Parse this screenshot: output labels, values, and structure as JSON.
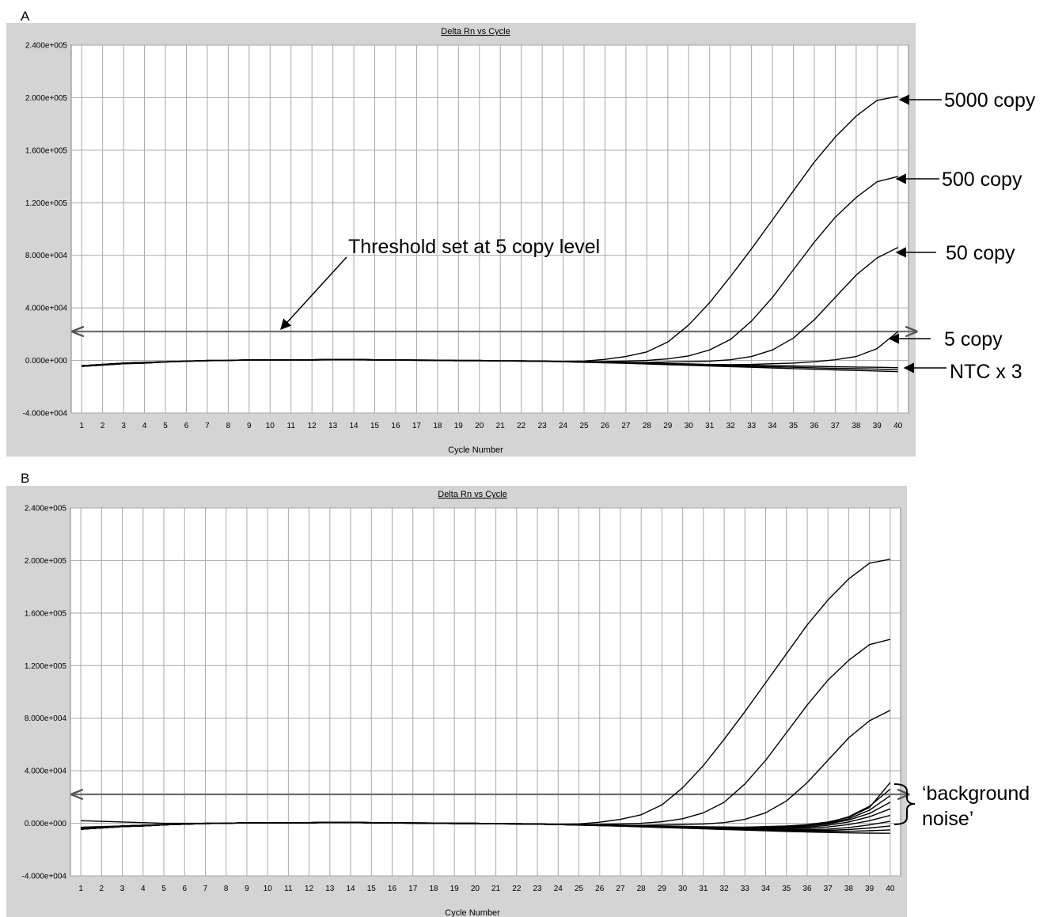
{
  "figure": {
    "panels": [
      {
        "letter": "A"
      },
      {
        "letter": "B"
      }
    ]
  },
  "chart_data": [
    {
      "panel": "A",
      "type": "line",
      "title": "Delta Rn vs Cycle",
      "xlabel": "Cycle Number",
      "ylabel": "",
      "x": [
        1,
        2,
        3,
        4,
        5,
        6,
        7,
        8,
        9,
        10,
        11,
        12,
        13,
        14,
        15,
        16,
        17,
        18,
        19,
        20,
        21,
        22,
        23,
        24,
        25,
        26,
        27,
        28,
        29,
        30,
        31,
        32,
        33,
        34,
        35,
        36,
        37,
        38,
        39,
        40
      ],
      "xlim": [
        0.5,
        40.5
      ],
      "ylim": [
        -40000,
        240000
      ],
      "yticks": [
        -40000,
        0,
        40000,
        80000,
        120000,
        160000,
        200000,
        240000
      ],
      "ytick_labels": [
        "-4.000e+004",
        "0.000e+000",
        "4.000e+004",
        "8.000e+004",
        "1.200e+005",
        "1.600e+005",
        "2.000e+005",
        "2.400e+005"
      ],
      "grid": true,
      "threshold": 22000,
      "series": [
        {
          "name": "5000 copy",
          "values": [
            -4000,
            -3000,
            -2000,
            -1500,
            -1000,
            -500,
            0,
            0,
            500,
            500,
            500,
            500,
            800,
            800,
            500,
            500,
            300,
            200,
            0,
            0,
            -300,
            -300,
            -500,
            -800,
            -500,
            800,
            3000,
            6500,
            14000,
            27000,
            44000,
            64000,
            85000,
            107000,
            129000,
            151000,
            170000,
            186000,
            198000,
            201000
          ]
        },
        {
          "name": "500 copy",
          "values": [
            -4000,
            -3000,
            -2000,
            -1500,
            -1000,
            -500,
            0,
            0,
            500,
            500,
            500,
            500,
            800,
            800,
            500,
            500,
            300,
            200,
            0,
            0,
            -300,
            -300,
            -500,
            -800,
            -1000,
            -800,
            -500,
            0,
            1200,
            3500,
            8000,
            16000,
            30000,
            48000,
            69000,
            90000,
            109000,
            124000,
            136000,
            140000
          ]
        },
        {
          "name": "50 copy",
          "values": [
            -4000,
            -3000,
            -2000,
            -1500,
            -1000,
            -500,
            0,
            0,
            500,
            500,
            500,
            500,
            800,
            800,
            500,
            500,
            300,
            200,
            0,
            0,
            -300,
            -300,
            -500,
            -800,
            -1000,
            -1200,
            -1500,
            -1500,
            -1200,
            -1000,
            -500,
            500,
            3000,
            8000,
            17000,
            31000,
            48000,
            65000,
            78000,
            86000
          ]
        },
        {
          "name": "5 copy",
          "values": [
            -4000,
            -3000,
            -2000,
            -1500,
            -1000,
            -500,
            0,
            0,
            500,
            500,
            500,
            500,
            800,
            800,
            500,
            500,
            300,
            200,
            0,
            0,
            -300,
            -300,
            -500,
            -800,
            -1000,
            -1300,
            -1600,
            -2000,
            -2300,
            -2600,
            -3000,
            -3200,
            -3000,
            -2500,
            -2000,
            -1000,
            500,
            3000,
            9000,
            22000
          ]
        },
        {
          "name": "NTC x 3",
          "values": [
            -4500,
            -3500,
            -2500,
            -2000,
            -1200,
            -700,
            -200,
            0,
            300,
            300,
            300,
            300,
            600,
            600,
            300,
            300,
            100,
            0,
            -200,
            -200,
            -400,
            -500,
            -700,
            -1000,
            -1200,
            -1500,
            -1800,
            -2200,
            -2500,
            -2800,
            -3200,
            -3400,
            -3700,
            -4000,
            -4200,
            -4500,
            -4700,
            -5000,
            -5200,
            -5500
          ]
        },
        {
          "name": "NTC x 3",
          "values": [
            -4500,
            -3500,
            -2500,
            -2000,
            -1200,
            -700,
            -200,
            0,
            300,
            300,
            300,
            300,
            600,
            600,
            300,
            300,
            100,
            0,
            -200,
            -200,
            -400,
            -500,
            -700,
            -1000,
            -1300,
            -1600,
            -2000,
            -2400,
            -2800,
            -3200,
            -3600,
            -4000,
            -4400,
            -4800,
            -5200,
            -5600,
            -6000,
            -6300,
            -6600,
            -7000
          ]
        },
        {
          "name": "NTC x 3",
          "values": [
            -4500,
            -3500,
            -2500,
            -2000,
            -1200,
            -700,
            -200,
            0,
            300,
            300,
            300,
            300,
            600,
            600,
            300,
            300,
            100,
            0,
            -200,
            -200,
            -400,
            -500,
            -700,
            -1000,
            -1400,
            -1800,
            -2200,
            -2700,
            -3200,
            -3700,
            -4200,
            -4700,
            -5200,
            -5700,
            -6200,
            -6700,
            -7200,
            -7600,
            -8000,
            -8500
          ]
        }
      ],
      "annotations": [
        {
          "text": "Threshold set at 5 copy level",
          "x": 10.5,
          "y": 22000
        },
        {
          "text": "5000 copy"
        },
        {
          "text": "500 copy"
        },
        {
          "text": "50 copy"
        },
        {
          "text": "5 copy"
        },
        {
          "text": "NTC x 3"
        }
      ]
    },
    {
      "panel": "B",
      "type": "line",
      "title": "Delta Rn vs Cycle",
      "xlabel": "Cycle Number",
      "ylabel": "",
      "x": [
        1,
        2,
        3,
        4,
        5,
        6,
        7,
        8,
        9,
        10,
        11,
        12,
        13,
        14,
        15,
        16,
        17,
        18,
        19,
        20,
        21,
        22,
        23,
        24,
        25,
        26,
        27,
        28,
        29,
        30,
        31,
        32,
        33,
        34,
        35,
        36,
        37,
        38,
        39,
        40
      ],
      "xlim": [
        0.5,
        40.5
      ],
      "ylim": [
        -40000,
        240000
      ],
      "yticks": [
        -40000,
        0,
        40000,
        80000,
        120000,
        160000,
        200000,
        240000
      ],
      "ytick_labels": [
        "-4.000e+004",
        "0.000e+000",
        "4.000e+004",
        "8.000e+004",
        "1.200e+005",
        "1.600e+005",
        "2.000e+005",
        "2.400e+005"
      ],
      "grid": true,
      "threshold": 22000,
      "series": [
        {
          "values": [
            -4000,
            -3000,
            -2000,
            -1500,
            -1000,
            -500,
            0,
            0,
            500,
            500,
            500,
            500,
            800,
            800,
            500,
            500,
            300,
            200,
            0,
            0,
            -300,
            -300,
            -500,
            -800,
            -500,
            800,
            3000,
            6500,
            14000,
            27000,
            44000,
            64000,
            85000,
            107000,
            129000,
            151000,
            170000,
            186000,
            198000,
            201000
          ]
        },
        {
          "values": [
            -4000,
            -3000,
            -2000,
            -1500,
            -1000,
            -500,
            0,
            0,
            500,
            500,
            500,
            500,
            800,
            800,
            500,
            500,
            300,
            200,
            0,
            0,
            -300,
            -300,
            -500,
            -800,
            -1000,
            -800,
            -500,
            0,
            1200,
            3500,
            8000,
            16000,
            30000,
            48000,
            69000,
            90000,
            109000,
            124000,
            136000,
            140000
          ]
        },
        {
          "values": [
            -4000,
            -3000,
            -2000,
            -1500,
            -1000,
            -500,
            0,
            0,
            500,
            500,
            500,
            500,
            800,
            800,
            500,
            500,
            300,
            200,
            0,
            0,
            -300,
            -300,
            -500,
            -800,
            -1000,
            -1200,
            -1500,
            -1500,
            -1200,
            -1000,
            -500,
            500,
            3000,
            8000,
            17000,
            31000,
            48000,
            65000,
            78000,
            86000
          ]
        },
        {
          "values": [
            -4000,
            -3000,
            -2000,
            -1500,
            -1000,
            -500,
            0,
            0,
            500,
            500,
            500,
            500,
            800,
            800,
            500,
            500,
            300,
            200,
            0,
            0,
            -300,
            -300,
            -500,
            -800,
            -1000,
            -1300,
            -1600,
            -2000,
            -2300,
            -2600,
            -3000,
            -3200,
            -3000,
            -2500,
            -2000,
            -1000,
            1000,
            4500,
            12000,
            31000
          ]
        },
        {
          "values": [
            2000,
            1500,
            1000,
            500,
            0,
            0,
            0,
            0,
            500,
            500,
            500,
            500,
            800,
            800,
            500,
            500,
            300,
            200,
            0,
            0,
            -300,
            -300,
            -500,
            -800,
            -1000,
            -1200,
            -1500,
            -1800,
            -2000,
            -2300,
            -2600,
            -2800,
            -3000,
            -2800,
            -2500,
            -1500,
            500,
            5000,
            13000,
            26000
          ]
        },
        {
          "values": [
            -3000,
            -2500,
            -2000,
            -1500,
            -1000,
            -500,
            0,
            0,
            500,
            500,
            500,
            500,
            800,
            800,
            500,
            500,
            300,
            200,
            0,
            0,
            -300,
            -300,
            -500,
            -800,
            -1000,
            -1300,
            -1600,
            -1900,
            -2200,
            -2500,
            -2800,
            -3000,
            -3000,
            -2800,
            -2400,
            -1500,
            0,
            3500,
            10000,
            21000
          ]
        },
        {
          "values": [
            -4500,
            -3500,
            -2500,
            -2000,
            -1200,
            -700,
            -200,
            0,
            300,
            300,
            300,
            300,
            600,
            600,
            300,
            300,
            100,
            0,
            -200,
            -200,
            -400,
            -500,
            -700,
            -1000,
            -1200,
            -1500,
            -1800,
            -2100,
            -2400,
            -2700,
            -3000,
            -3200,
            -3300,
            -3200,
            -3000,
            -2200,
            -500,
            2500,
            7500,
            16000
          ]
        },
        {
          "values": [
            -4500,
            -3500,
            -2500,
            -2000,
            -1200,
            -700,
            -200,
            0,
            300,
            300,
            300,
            300,
            600,
            600,
            300,
            300,
            100,
            0,
            -200,
            -200,
            -400,
            -500,
            -700,
            -1000,
            -1200,
            -1500,
            -1800,
            -2100,
            -2400,
            -2700,
            -3000,
            -3300,
            -3500,
            -3600,
            -3500,
            -3000,
            -1500,
            1000,
            5000,
            11000
          ]
        },
        {
          "values": [
            -4500,
            -3500,
            -2500,
            -2000,
            -1200,
            -700,
            -200,
            0,
            300,
            300,
            300,
            300,
            600,
            600,
            300,
            300,
            100,
            0,
            -200,
            -200,
            -400,
            -500,
            -700,
            -1000,
            -1200,
            -1500,
            -1800,
            -2200,
            -2500,
            -2800,
            -3200,
            -3500,
            -3800,
            -4000,
            -4000,
            -3800,
            -2800,
            -1000,
            2000,
            6000
          ]
        },
        {
          "values": [
            -4500,
            -3500,
            -2500,
            -2000,
            -1200,
            -700,
            -200,
            0,
            300,
            300,
            300,
            300,
            600,
            600,
            300,
            300,
            100,
            0,
            -200,
            -200,
            -400,
            -500,
            -700,
            -1000,
            -1300,
            -1600,
            -2000,
            -2400,
            -2800,
            -3200,
            -3600,
            -4000,
            -4300,
            -4600,
            -4800,
            -4800,
            -4400,
            -3200,
            -1200,
            1500
          ]
        },
        {
          "values": [
            -4500,
            -3500,
            -2500,
            -2000,
            -1200,
            -700,
            -200,
            0,
            300,
            300,
            300,
            300,
            600,
            600,
            300,
            300,
            100,
            0,
            -200,
            -200,
            -400,
            -500,
            -700,
            -1000,
            -1300,
            -1700,
            -2100,
            -2500,
            -2900,
            -3300,
            -3700,
            -4100,
            -4500,
            -4900,
            -5200,
            -5400,
            -5400,
            -4800,
            -3600,
            -2000
          ]
        },
        {
          "values": [
            -4500,
            -3500,
            -2500,
            -2000,
            -1200,
            -700,
            -200,
            0,
            300,
            300,
            300,
            300,
            600,
            600,
            300,
            300,
            100,
            0,
            -200,
            -200,
            -400,
            -500,
            -700,
            -1000,
            -1300,
            -1700,
            -2100,
            -2600,
            -3000,
            -3500,
            -3900,
            -4400,
            -4800,
            -5200,
            -5600,
            -5900,
            -6100,
            -6100,
            -5700,
            -5000
          ]
        },
        {
          "values": [
            -4500,
            -3500,
            -2500,
            -2000,
            -1200,
            -700,
            -200,
            0,
            300,
            300,
            300,
            300,
            600,
            600,
            300,
            300,
            100,
            0,
            -200,
            -200,
            -400,
            -500,
            -700,
            -1000,
            -1400,
            -1800,
            -2200,
            -2700,
            -3200,
            -3700,
            -4200,
            -4700,
            -5200,
            -5700,
            -6200,
            -6600,
            -7000,
            -7300,
            -7500,
            -7600
          ]
        }
      ],
      "annotations": [
        {
          "text": "‘background"
        },
        {
          "text": "noise’"
        }
      ]
    }
  ]
}
